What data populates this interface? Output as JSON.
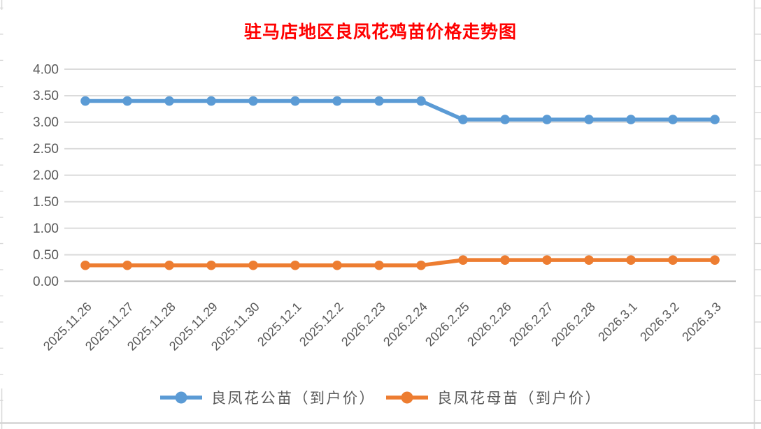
{
  "chart_data": {
    "type": "line",
    "title": "驻马店地区良凤花鸡苗价格走势图",
    "title_color": "#FF0000",
    "categories": [
      "2025.11.26",
      "2025.11.27",
      "2025.11.28",
      "2025.11.29",
      "2025.11.30",
      "2025.12.1",
      "2025.12.2",
      "2026.2.23",
      "2026.2.24",
      "2026.2.25",
      "2026.2.26",
      "2026.2.27",
      "2026.2.28",
      "2026.3.1",
      "2026.3.2",
      "2026.3.3"
    ],
    "series": [
      {
        "name": "良凤花公苗（到户价）",
        "color": "#5B9BD5",
        "values": [
          3.4,
          3.4,
          3.4,
          3.4,
          3.4,
          3.4,
          3.4,
          3.4,
          3.4,
          3.05,
          3.05,
          3.05,
          3.05,
          3.05,
          3.05,
          3.05
        ]
      },
      {
        "name": "良凤花母苗（到户价）",
        "color": "#ED7D31",
        "values": [
          0.3,
          0.3,
          0.3,
          0.3,
          0.3,
          0.3,
          0.3,
          0.3,
          0.3,
          0.4,
          0.4,
          0.4,
          0.4,
          0.4,
          0.4,
          0.4
        ]
      }
    ],
    "ylim": [
      0,
      4
    ],
    "yticks": [
      "0.00",
      "0.50",
      "1.00",
      "1.50",
      "2.00",
      "2.50",
      "3.00",
      "3.50",
      "4.00"
    ],
    "grid": true,
    "legend_position": "bottom",
    "axis_label_color": "#595959",
    "gridline_color": "#DBDBDB",
    "zero_axis_color": "#B5B5B5",
    "sheet_line_color": "#D9D9D9"
  }
}
